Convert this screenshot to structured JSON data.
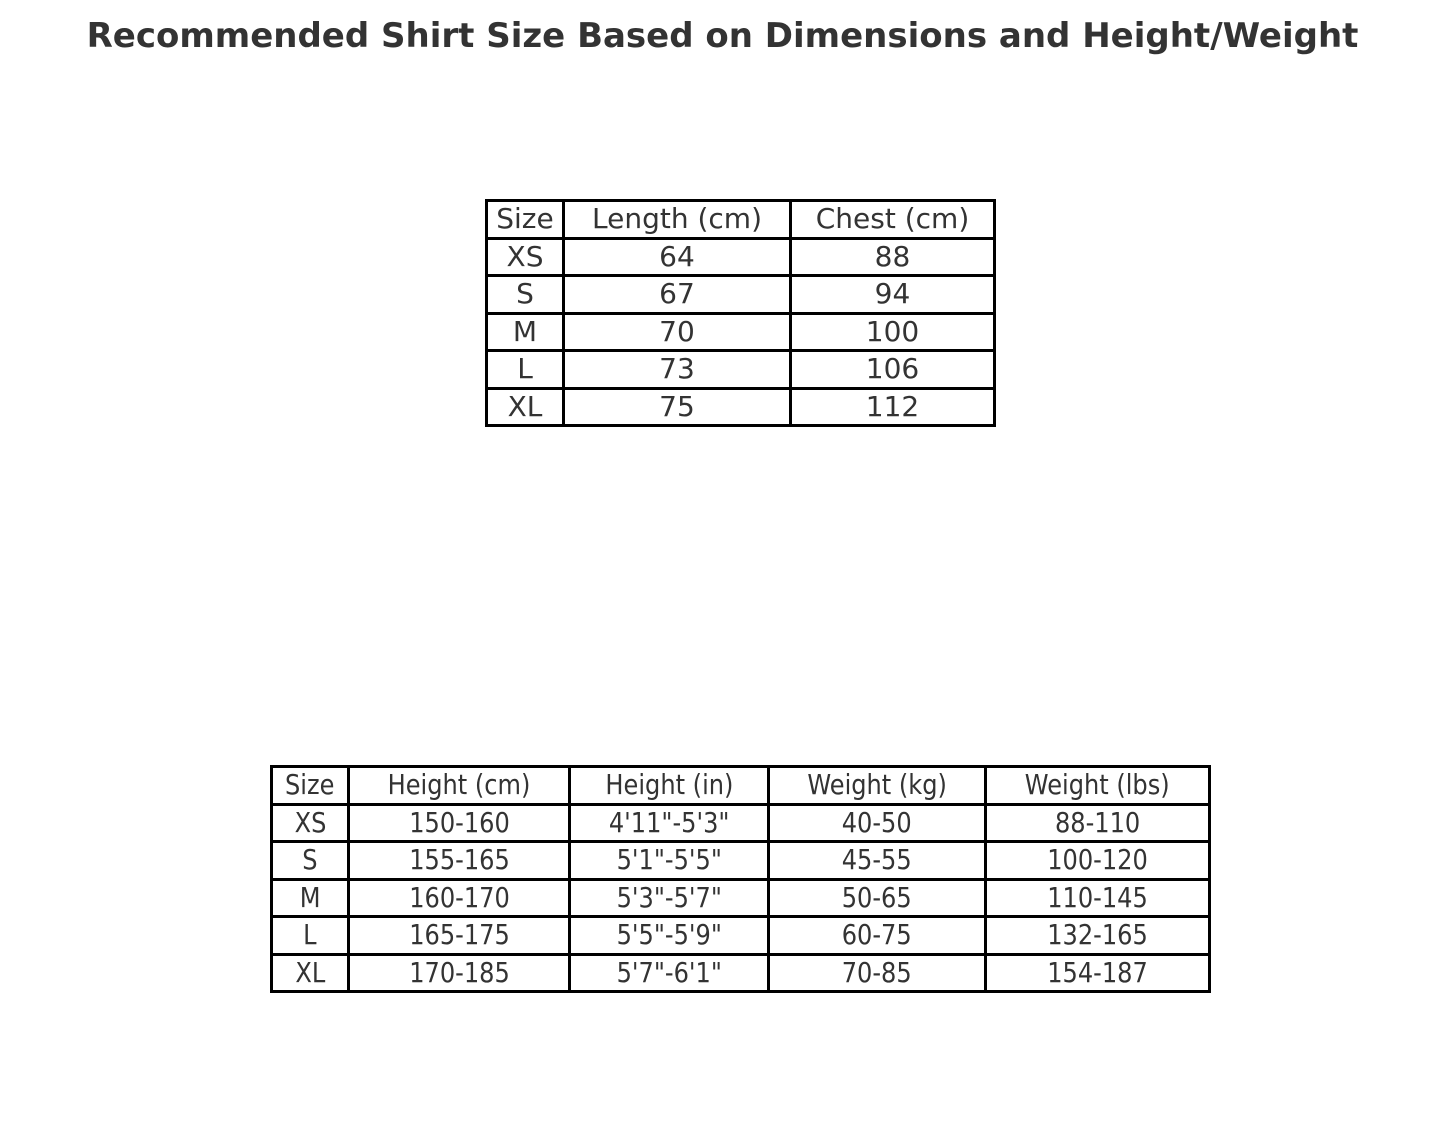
{
  "title": "Recommended Shirt Size Based on Dimensions and Height/Weight",
  "chart_data": [
    {
      "type": "table",
      "columns": [
        "Size",
        "Length (cm)",
        "Chest (cm)"
      ],
      "rows": [
        [
          "XS",
          "64",
          "88"
        ],
        [
          "S",
          "67",
          "94"
        ],
        [
          "M",
          "70",
          "100"
        ],
        [
          "L",
          "73",
          "106"
        ],
        [
          "XL",
          "75",
          "112"
        ]
      ]
    },
    {
      "type": "table",
      "columns": [
        "Size",
        "Height (cm)",
        "Height (in)",
        "Weight (kg)",
        "Weight (lbs)"
      ],
      "rows": [
        [
          "XS",
          "150-160",
          "4'11\"-5'3\"",
          "40-50",
          "88-110"
        ],
        [
          "S",
          "155-165",
          "5'1\"-5'5\"",
          "45-55",
          "100-120"
        ],
        [
          "M",
          "160-170",
          "5'3\"-5'7\"",
          "50-65",
          "110-145"
        ],
        [
          "L",
          "165-175",
          "5'5\"-5'9\"",
          "60-75",
          "132-165"
        ],
        [
          "XL",
          "170-185",
          "5'7\"-6'1\"",
          "70-85",
          "154-187"
        ]
      ]
    }
  ]
}
